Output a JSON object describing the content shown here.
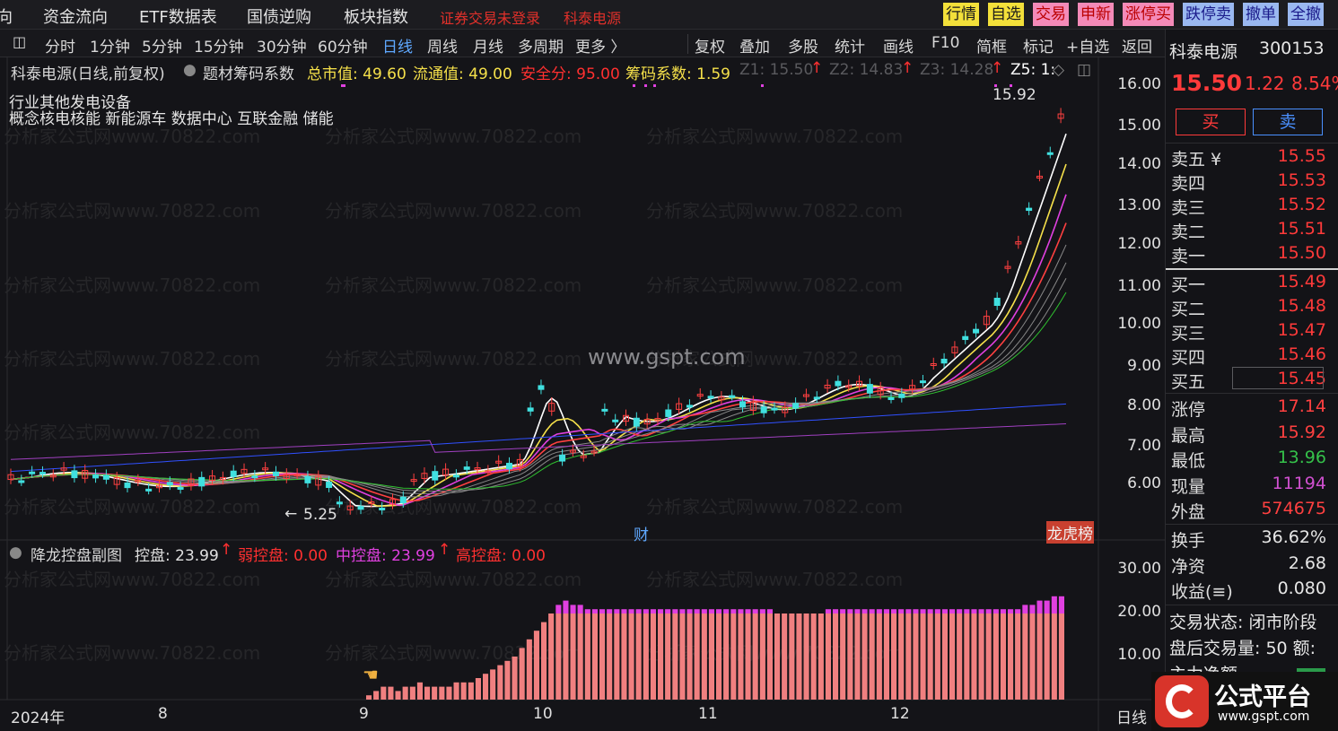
{
  "top_menu": {
    "items": [
      "向",
      "资金流向",
      "ETF数据表",
      "国债逆购",
      "板块指数"
    ],
    "status": "证券交易未登录",
    "stock_name": "科泰电源",
    "buttons": [
      "行情",
      "自选",
      "交易",
      "申新",
      "涨停买",
      "跌停卖",
      "撤单",
      "全撤"
    ]
  },
  "period_tabs": [
    "分时",
    "1分钟",
    "5分钟",
    "15分钟",
    "30分钟",
    "60分钟",
    "日线",
    "周线",
    "月线",
    "多周期",
    "更多 〉"
  ],
  "active_period": "日线",
  "tools": [
    "复权",
    "叠加",
    "多股",
    "统计",
    "画线",
    "F10",
    "简框",
    "标记",
    "+自选",
    "返回"
  ],
  "main_chart": {
    "title": "科泰电源(日线,前复权)",
    "indicator_name": "题材筹码系数",
    "stats": {
      "total_mv": "总市值: 49.60",
      "float_mv": "流通值: 49.00",
      "safety": "安全分: 95.00",
      "chip_coef": "筹码系数: 1.59",
      "z1": "Z1: 15.50",
      "z2": "Z2: 14.83",
      "z3": "Z3: 14.28",
      "z5": "Z5: 1:"
    },
    "industry": "行业其他发电设备",
    "concepts": "概念核电核能 新能源车 数据中心 互联金融 储能",
    "price_axis": [
      "16.00",
      "15.00",
      "14.00",
      "13.00",
      "12.00",
      "11.00",
      "10.00",
      "9.00",
      "8.00",
      "7.00",
      "6.00"
    ],
    "high_marker": "15.92",
    "low_marker": "5.25",
    "badge_fin": "财",
    "badge_rank": "龙虎榜"
  },
  "sub_chart": {
    "title": "降龙控盘副图",
    "kongpan": "控盘: 23.99",
    "weak": "弱控盘: 0.00",
    "mid": "中控盘: 23.99",
    "high": "高控盘: 0.00",
    "axis": [
      "30.00",
      "20.00",
      "10.00"
    ]
  },
  "time_axis": {
    "labels": [
      "2024年",
      "8",
      "9",
      "10",
      "11",
      "12"
    ],
    "period_label": "日线"
  },
  "chart_data": {
    "type": "bar",
    "description_series": "控盘",
    "values": [
      1,
      2,
      3,
      3,
      2,
      3,
      3,
      4,
      3,
      3,
      3,
      3,
      4,
      4,
      4,
      5,
      6,
      7,
      8,
      9,
      10,
      12,
      14,
      16,
      18,
      20,
      22,
      23,
      22,
      22,
      21,
      21,
      21,
      21,
      21,
      21,
      21,
      21,
      21,
      21,
      21,
      21,
      21,
      21,
      21,
      21,
      21,
      21,
      21,
      21,
      21,
      21,
      21,
      21,
      21,
      21,
      20,
      20,
      20,
      20,
      20,
      20,
      20,
      21,
      21,
      21,
      21,
      21,
      21,
      21,
      21,
      21,
      21,
      21,
      21,
      21,
      21,
      21,
      21,
      21,
      21,
      21,
      21,
      21,
      21,
      21,
      21,
      21,
      21,
      21,
      22,
      22,
      23,
      23,
      24,
      24
    ],
    "ylim": [
      0,
      30
    ]
  },
  "quote": {
    "name": "科泰电源",
    "code": "300153",
    "price": "15.50",
    "change": "1.22",
    "pct": "8.54%",
    "buy_label": "买",
    "sell_label": "卖",
    "asks": [
      {
        "label": "卖五 ¥",
        "price": "15.55"
      },
      {
        "label": "卖四",
        "price": "15.53"
      },
      {
        "label": "卖三",
        "price": "15.52"
      },
      {
        "label": "卖二",
        "price": "15.51"
      },
      {
        "label": "卖一",
        "price": "15.50"
      }
    ],
    "bids": [
      {
        "label": "买一",
        "price": "15.49"
      },
      {
        "label": "买二",
        "price": "15.48"
      },
      {
        "label": "买三",
        "price": "15.47"
      },
      {
        "label": "买四",
        "price": "15.46"
      },
      {
        "label": "买五",
        "price": "15.45"
      }
    ],
    "stats": [
      {
        "label": "涨停",
        "value": "17.14",
        "color": "#ff4040"
      },
      {
        "label": "最高",
        "value": "15.92",
        "color": "#ff4040"
      },
      {
        "label": "最低",
        "value": "13.96",
        "color": "#35c14a"
      },
      {
        "label": "现量",
        "value": "11194",
        "color": "#d050d0"
      },
      {
        "label": "外盘",
        "value": "574675",
        "color": "#ff4040"
      }
    ],
    "stats2": [
      {
        "label": "换手",
        "value": "36.62%"
      },
      {
        "label": "净资",
        "value": "2.68"
      },
      {
        "label": "收益(≡)",
        "value": "0.080"
      }
    ],
    "trade_status": "交易状态: 闭市阶段",
    "after_hours": "盘后交易量: 50  额:",
    "net_flow": "主力净额"
  },
  "watermarks": [
    "分析家公式网www.70822.com",
    "www.gspt.com"
  ],
  "logo": {
    "name": "公式平台",
    "url": "www.gspt.com"
  }
}
